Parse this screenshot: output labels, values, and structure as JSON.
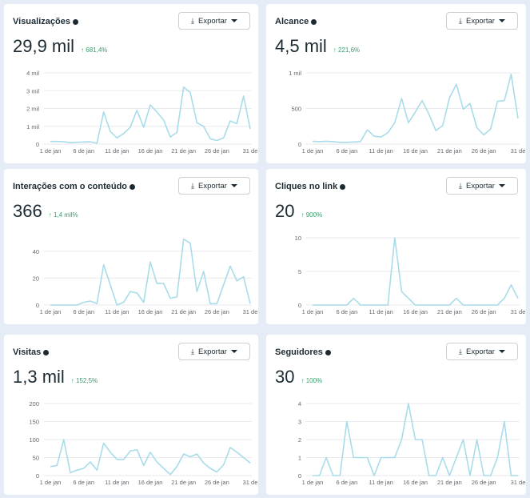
{
  "export_label": "Exportar",
  "line_color": "#a8dcea",
  "x_ticks": [
    "1 de jan",
    "6 de jan",
    "11 de jan",
    "16 de jan",
    "21 de jan",
    "26 de jan",
    "31 de"
  ],
  "cards": [
    {
      "title": "Visualizações",
      "value": "29,9 mil",
      "delta": "↑ 681,4%",
      "chart_data": {
        "type": "line",
        "x": "1-31 jan",
        "ylim": [
          0,
          4000
        ],
        "y_ticks": [
          {
            "v": 0,
            "l": "0"
          },
          {
            "v": 1000,
            "l": "1 mil"
          },
          {
            "v": 2000,
            "l": "2 mil"
          },
          {
            "v": 3000,
            "l": "3 mil"
          },
          {
            "v": 4000,
            "l": "4 mil"
          }
        ],
        "values": [
          150,
          150,
          130,
          80,
          100,
          120,
          130,
          50,
          1800,
          700,
          350,
          600,
          950,
          1900,
          950,
          2200,
          1800,
          1350,
          400,
          650,
          3200,
          2900,
          1200,
          1000,
          300,
          200,
          350,
          1300,
          1150,
          2700,
          850
        ]
      }
    },
    {
      "title": "Alcance",
      "value": "4,5 mil",
      "delta": "↑ 221,6%",
      "chart_data": {
        "type": "line",
        "x": "1-31 jan",
        "ylim": [
          0,
          1000
        ],
        "y_ticks": [
          {
            "v": 0,
            "l": "0"
          },
          {
            "v": 500,
            "l": "500"
          },
          {
            "v": 1000,
            "l": "1 mil"
          }
        ],
        "values": [
          40,
          35,
          40,
          35,
          25,
          25,
          30,
          35,
          200,
          110,
          100,
          160,
          300,
          640,
          300,
          450,
          610,
          420,
          190,
          260,
          650,
          840,
          490,
          570,
          230,
          130,
          210,
          600,
          610,
          980,
          360
        ]
      }
    },
    {
      "title": "Interações com o conteúdo",
      "value": "366",
      "delta": "↑ 1,4 mil%",
      "chart_data": {
        "type": "line",
        "x": "1-31 jan",
        "ylim": [
          0,
          50
        ],
        "y_ticks": [
          {
            "v": 0,
            "l": "0"
          },
          {
            "v": 20,
            "l": "20"
          },
          {
            "v": 40,
            "l": "40"
          }
        ],
        "values": [
          0,
          0,
          0,
          0,
          0,
          2,
          3,
          1,
          30,
          15,
          0,
          2,
          10,
          9,
          2,
          32,
          16,
          16,
          5,
          6,
          49,
          46,
          10,
          25,
          1,
          1,
          15,
          29,
          18,
          21,
          1
        ]
      }
    },
    {
      "title": "Cliques no link",
      "value": "20",
      "delta": "↑ 900%",
      "chart_data": {
        "type": "line",
        "x": "1-31 jan",
        "ylim": [
          0,
          10
        ],
        "y_ticks": [
          {
            "v": 0,
            "l": "0"
          },
          {
            "v": 5,
            "l": "5"
          },
          {
            "v": 10,
            "l": "10"
          }
        ],
        "values": [
          0,
          0,
          0,
          0,
          0,
          0,
          1,
          0,
          0,
          0,
          0,
          0,
          10,
          2,
          1,
          0,
          0,
          0,
          0,
          0,
          0,
          1,
          0,
          0,
          0,
          0,
          0,
          0,
          1,
          3,
          1
        ]
      }
    },
    {
      "title": "Visitas",
      "value": "1,3 mil",
      "delta": "↑ 152,5%",
      "chart_data": {
        "type": "line",
        "x": "1-31 jan",
        "ylim": [
          0,
          200
        ],
        "y_ticks": [
          {
            "v": 0,
            "l": "0"
          },
          {
            "v": 50,
            "l": "50"
          },
          {
            "v": 100,
            "l": "100"
          },
          {
            "v": 150,
            "l": "150"
          },
          {
            "v": 200,
            "l": "200"
          }
        ],
        "values": [
          25,
          28,
          100,
          8,
          15,
          20,
          38,
          15,
          90,
          65,
          45,
          45,
          68,
          72,
          28,
          65,
          38,
          20,
          3,
          25,
          60,
          52,
          60,
          35,
          20,
          10,
          30,
          78,
          65,
          50,
          35
        ]
      }
    },
    {
      "title": "Seguidores",
      "value": "30",
      "delta": "↑ 100%",
      "chart_data": {
        "type": "line",
        "x": "1-31 jan",
        "ylim": [
          0,
          4
        ],
        "y_ticks": [
          {
            "v": 0,
            "l": "0"
          },
          {
            "v": 1,
            "l": "1"
          },
          {
            "v": 2,
            "l": "2"
          },
          {
            "v": 3,
            "l": "3"
          },
          {
            "v": 4,
            "l": "4"
          }
        ],
        "values": [
          0,
          0,
          1,
          0,
          0,
          3,
          1,
          1,
          1,
          0,
          1,
          1,
          1,
          2,
          4,
          2,
          2,
          0,
          0,
          1,
          0,
          1,
          2,
          0,
          2,
          0,
          0,
          1,
          3,
          0,
          0
        ]
      }
    }
  ]
}
